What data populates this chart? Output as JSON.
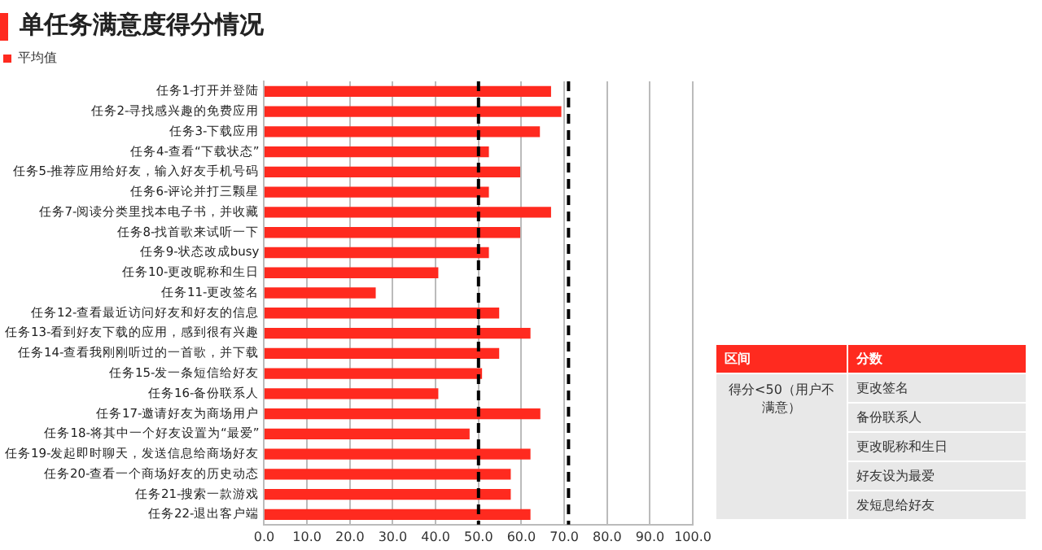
{
  "chart_data": {
    "type": "bar",
    "orientation": "horizontal",
    "title": "单任务满意度得分情况",
    "categories": [
      "任务1-打开并登陆",
      "任务2-寻找感兴趣的免费应用",
      "任务3-下载应用",
      "任务4-查看“下载状态”",
      "任务5-推荐应用给好友，输入好友手机号码",
      "任务6-评论并打三颗星",
      "任务7-阅读分类里找本电子书，并收藏",
      "任务8-找首歌来试听一下",
      "任务9-状态改成busy",
      "任务10-更改昵称和生日",
      "任务11-更改签名",
      "任务12-查看最近访问好友和好友的信息",
      "任务13-看到好友下载的应用，感到很有兴趣",
      "任务14-查看我刚刚听过的一首歌，并下载",
      "任务15-发一条短信给好友",
      "任务16-备份联系人",
      "任务17-邀请好友为商场用户",
      "任务18-将其中一个好友设置为“最爱”",
      "任务19-发起即时聊天，发送信息给商场好友",
      "任务20-查看一个商场好友的历史动态",
      "任务21-搜索一款游戏",
      "任务22-退出客户端"
    ],
    "series": [
      {
        "name": "平均值",
        "color": "#ff2a1f",
        "values": [
          66.8,
          69.2,
          64.2,
          52.3,
          59.6,
          52.3,
          66.8,
          59.6,
          52.3,
          40.5,
          25.9,
          54.7,
          62.0,
          54.7,
          50.7,
          40.5,
          64.3,
          47.8,
          62.0,
          57.4,
          57.4,
          62.0
        ]
      }
    ],
    "xlim": [
      0,
      100
    ],
    "xticks": [
      {
        "value": 0,
        "label": "0.0"
      },
      {
        "value": 10,
        "label": "10.0"
      },
      {
        "value": 20,
        "label": "20.0"
      },
      {
        "value": 30,
        "label": "30.0"
      },
      {
        "value": 40,
        "label": "40.0"
      },
      {
        "value": 50,
        "label": "50.0"
      },
      {
        "value": 60,
        "label": "60.0"
      },
      {
        "value": 70,
        "label": "70.0"
      },
      {
        "value": 80,
        "label": "80.0"
      },
      {
        "value": 90,
        "label": "90.0"
      },
      {
        "value": 100,
        "label": "100.0"
      }
    ],
    "ref_lines": [
      {
        "axis": "x",
        "value": 50,
        "color": "#000000",
        "line_style": "dashed"
      },
      {
        "axis": "x",
        "value": 71,
        "color": "#000000",
        "line_style": "dashed"
      }
    ],
    "grid": "x",
    "legend": "top left",
    "annotations": [
      "区间",
      "分数",
      "得分<50（用户不满意）",
      "更改签名",
      "备份联系人",
      "更改昵称和生日",
      "好友设为最爱",
      "发短息给好友"
    ]
  }
}
